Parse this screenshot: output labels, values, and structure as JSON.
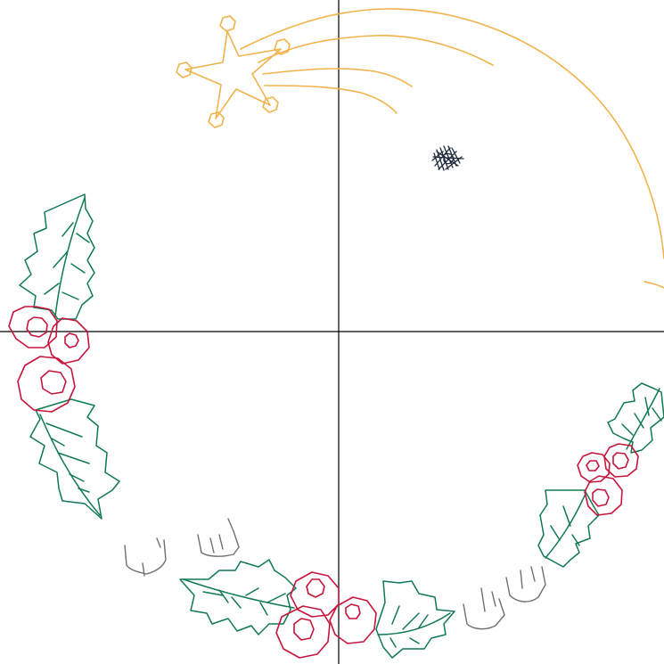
{
  "drawing": {
    "colors": {
      "background": "#ffffff",
      "axis": "#000000",
      "star": "#f2b24c",
      "holly_leaf": "#0f7a4f",
      "berry": "#c8143c",
      "scribble": "#1d2a3a",
      "foot_marks": "#6f6f6f"
    },
    "elements": {
      "axes": "crosshair",
      "shooting_star": "star-with-trail",
      "ornament_scribble": "dark-scribble",
      "wreath_left": "holly-with-berries",
      "wreath_right": "holly-with-berries",
      "wreath_bottom": "holly-with-berries",
      "foot_prints": "grey-sketch-lines"
    }
  }
}
